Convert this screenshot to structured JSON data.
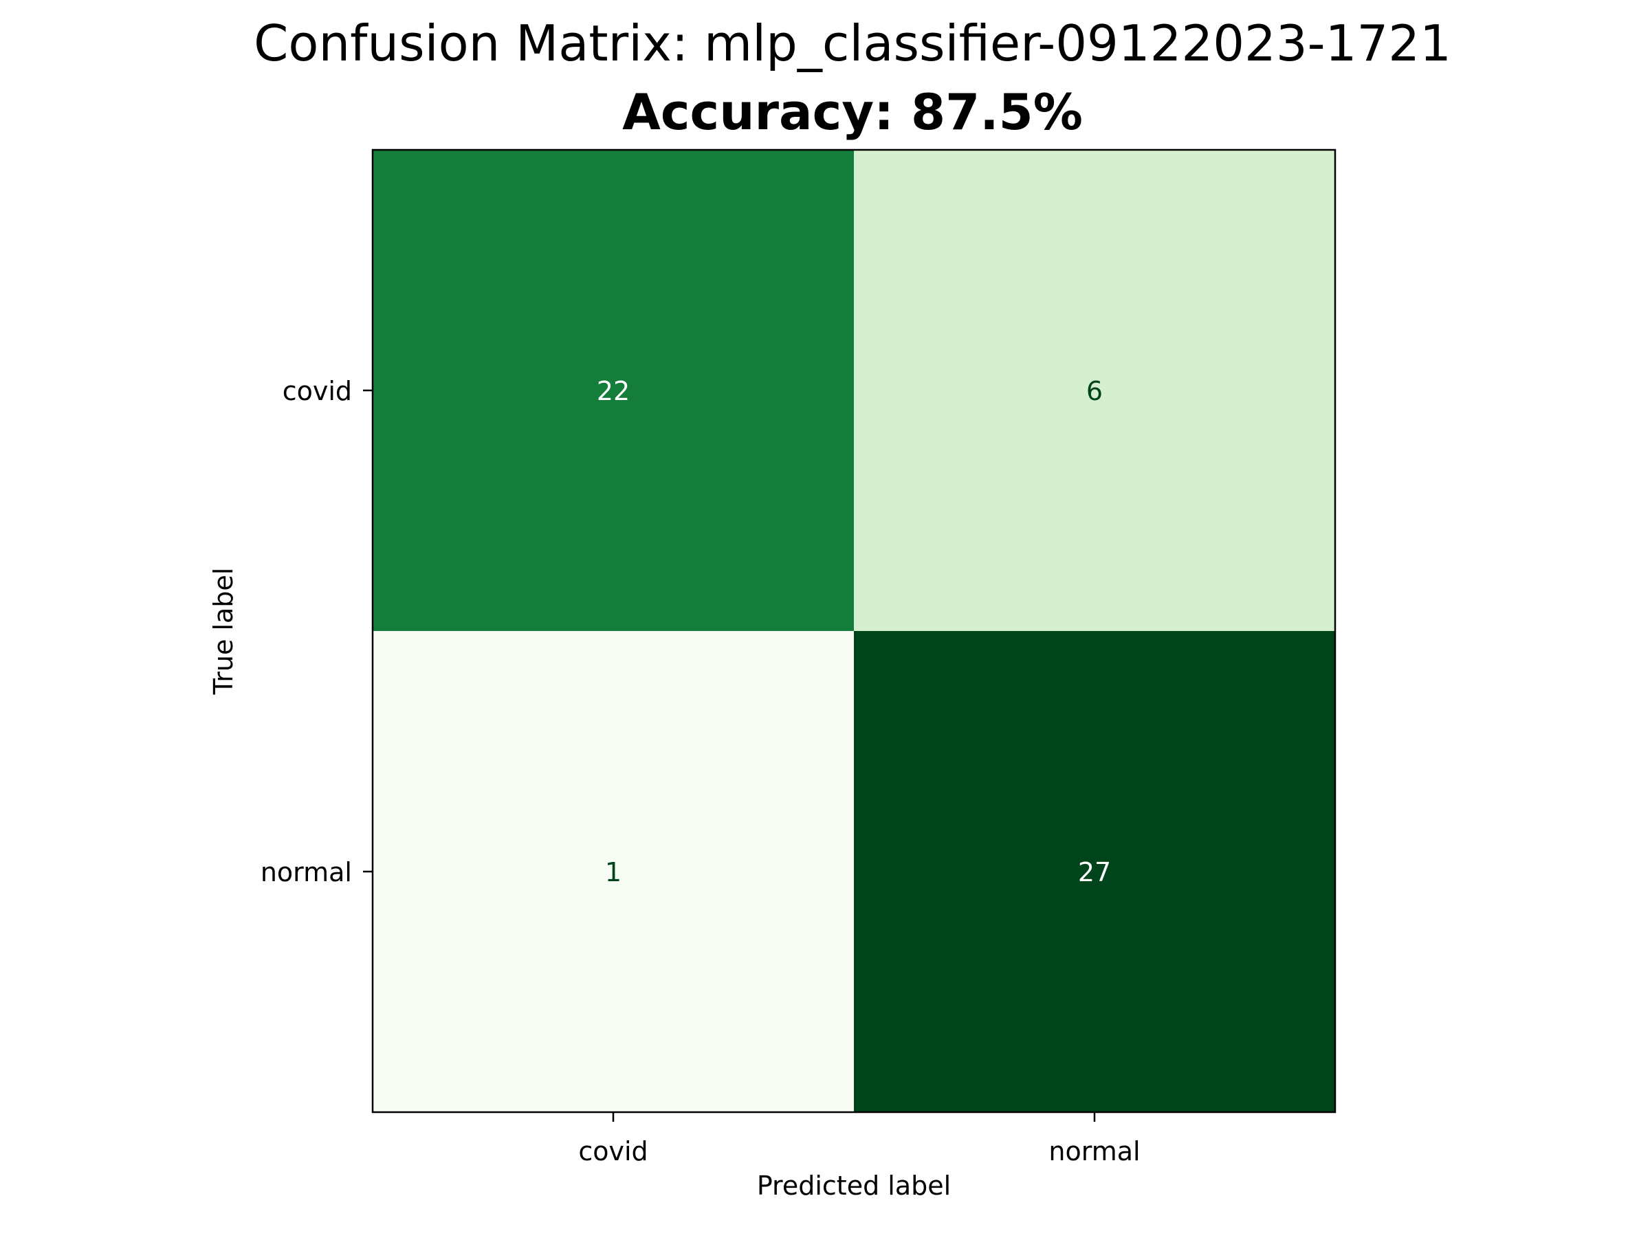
{
  "chart_data": {
    "type": "heatmap",
    "title": "Confusion Matrix: mlp_classifier-09122023-1721",
    "subtitle": "Accuracy: 87.5%",
    "xlabel": "Predicted label",
    "ylabel": "True label",
    "x_categories": [
      "covid",
      "normal"
    ],
    "y_categories": [
      "covid",
      "normal"
    ],
    "values": [
      [
        22,
        6
      ],
      [
        1,
        27
      ]
    ],
    "colormap": "Greens",
    "vmin": 1,
    "vmax": 27,
    "colors": {
      "cell_high": "#00441b",
      "cell_low": "#f7fcf5",
      "text_on_dark": "#ffffff",
      "text_on_light": "#00441b",
      "axes": "#000000"
    }
  }
}
